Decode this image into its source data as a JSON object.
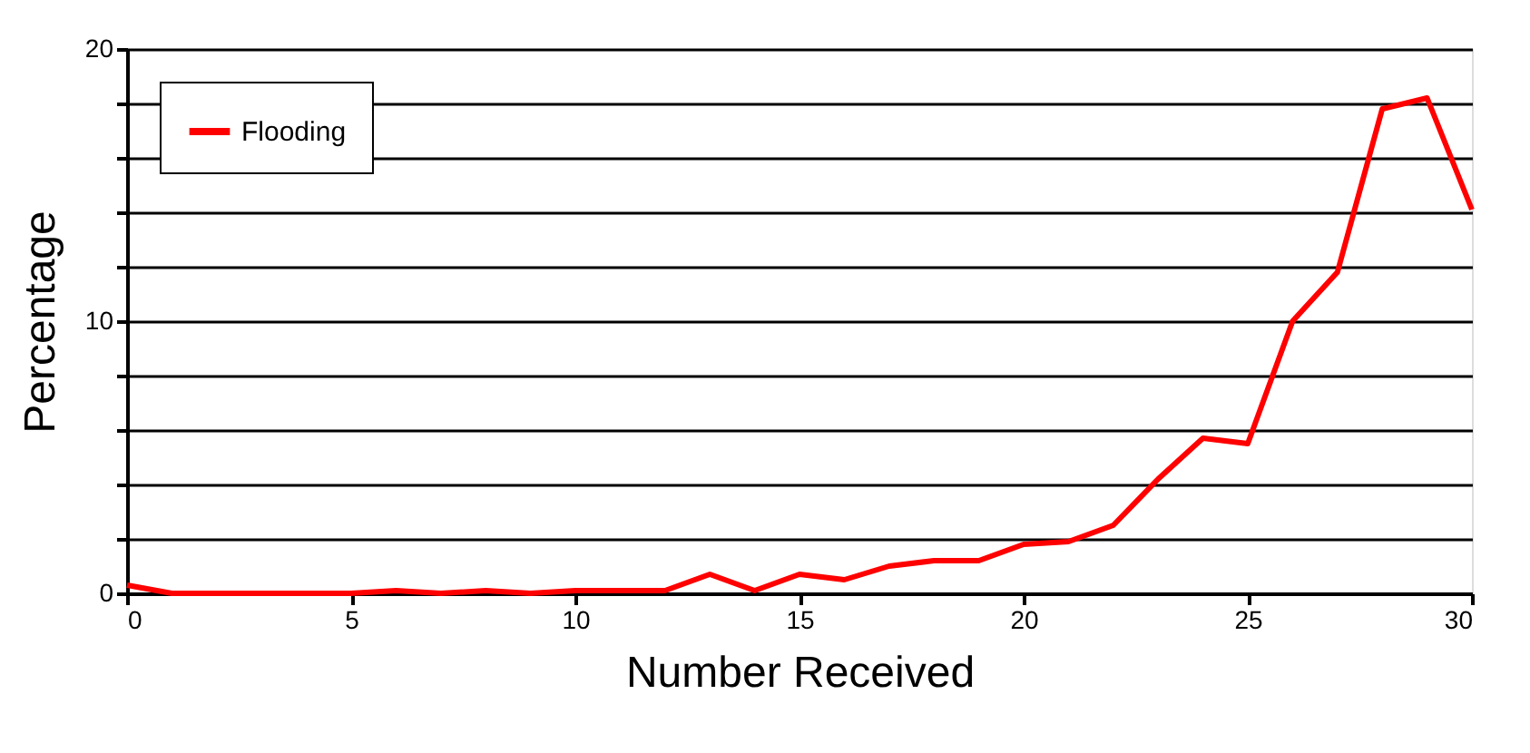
{
  "chart_data": {
    "type": "line",
    "xlabel": "Number Received",
    "ylabel": "Percentage",
    "x": [
      0,
      1,
      2,
      3,
      4,
      5,
      6,
      7,
      8,
      9,
      10,
      11,
      12,
      13,
      14,
      15,
      16,
      17,
      18,
      19,
      20,
      21,
      22,
      23,
      24,
      25,
      26,
      27,
      28,
      29,
      30
    ],
    "series": [
      {
        "name": "Flooding",
        "color": "#ff0000",
        "values": [
          0.3,
          0,
          0,
          0,
          0,
          0,
          0.1,
          0,
          0.1,
          0,
          0.1,
          0.1,
          0.1,
          0.7,
          0.1,
          0.7,
          0.5,
          1.0,
          1.2,
          1.2,
          1.8,
          1.9,
          2.5,
          4.2,
          5.7,
          5.5,
          10.0,
          11.8,
          17.8,
          18.2,
          14.1
        ]
      }
    ],
    "xlim": [
      0,
      30
    ],
    "xticks": [
      0,
      5,
      10,
      15,
      20,
      25,
      30
    ],
    "ylim": [
      0,
      20
    ],
    "yticks": [
      0,
      {
        "value": 2,
        "label": null
      },
      {
        "value": 4,
        "label": null
      },
      {
        "value": 6,
        "label": null
      },
      {
        "value": 8,
        "label": null
      },
      10,
      {
        "value": 12,
        "label": null
      },
      {
        "value": 14,
        "label": null
      },
      {
        "value": 16,
        "label": null
      },
      {
        "value": 18,
        "label": null
      },
      20
    ],
    "grid": "y",
    "legend": "top left",
    "line_style": "solid",
    "marker": "none"
  }
}
